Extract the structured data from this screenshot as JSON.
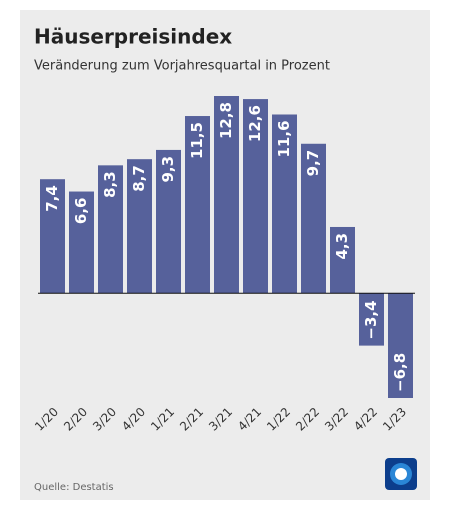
{
  "chart_data": {
    "type": "bar",
    "title": "Häuserpreisindex",
    "subtitle": "Veränderung zum Vorjahresquartal in Prozent",
    "categories": [
      "1/20",
      "2/20",
      "3/20",
      "4/20",
      "1/21",
      "2/21",
      "3/21",
      "4/21",
      "1/22",
      "2/22",
      "3/22",
      "4/22",
      "1/23"
    ],
    "values": [
      7.4,
      6.6,
      8.3,
      8.7,
      9.3,
      11.5,
      12.8,
      12.6,
      11.6,
      9.7,
      4.3,
      -3.4,
      -6.8
    ],
    "value_labels": [
      "7,4",
      "6,6",
      "8,3",
      "8,7",
      "9,3",
      "11,5",
      "12,8",
      "12,6",
      "11,6",
      "9,7",
      "4,3",
      "−3,4",
      "−6,8"
    ],
    "color": "#56619b",
    "source": "Quelle: Destatis"
  }
}
